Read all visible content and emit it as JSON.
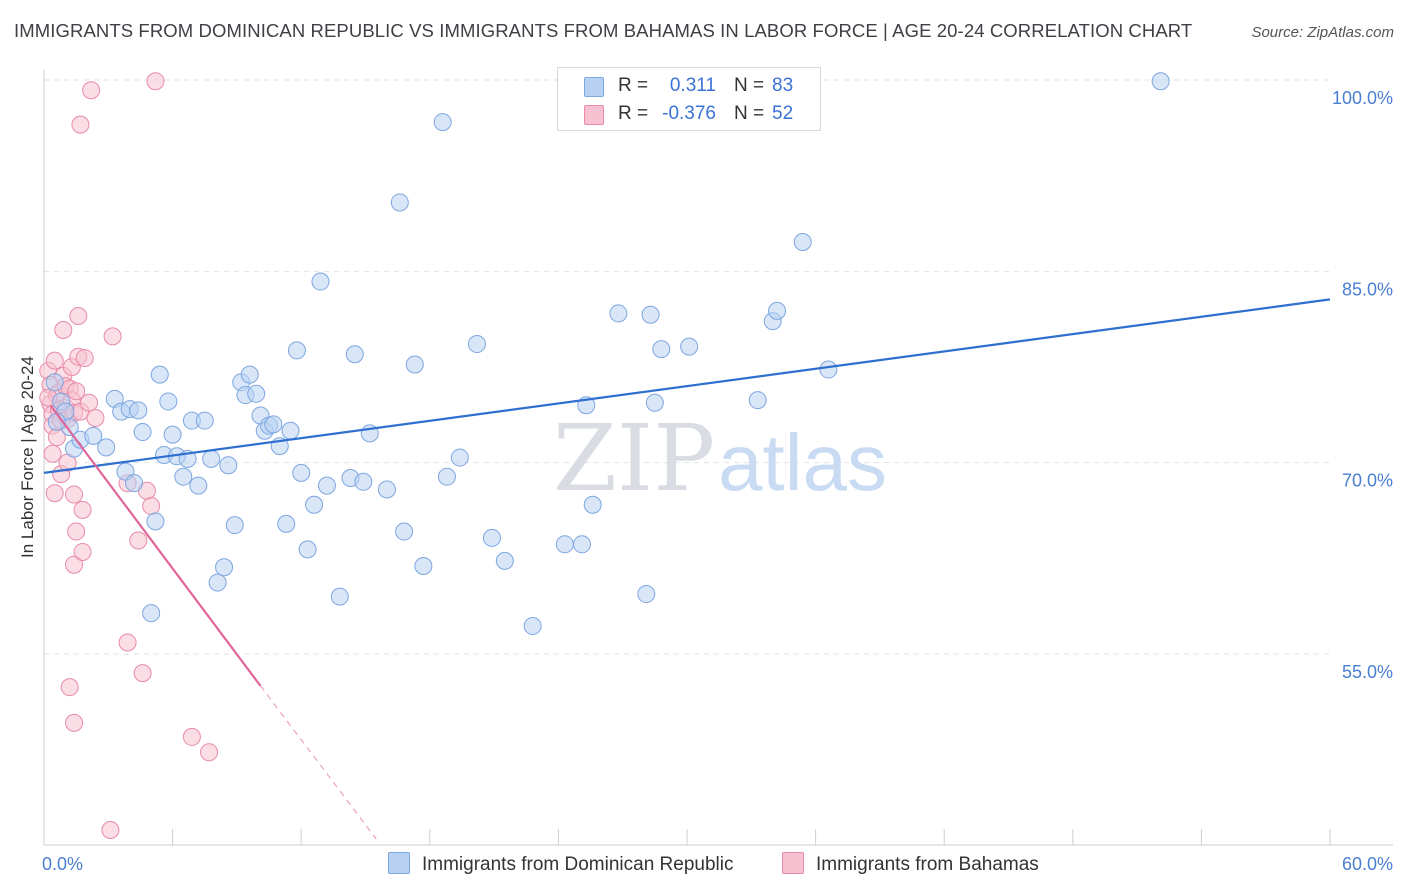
{
  "title": "IMMIGRANTS FROM DOMINICAN REPUBLIC VS IMMIGRANTS FROM BAHAMAS IN LABOR FORCE | AGE 20-24 CORRELATION CHART",
  "source": "Source: ZipAtlas.com",
  "watermark": {
    "zip": "ZIP",
    "atlas": "atlas"
  },
  "colors": {
    "blue_fill": "#b8d1f3",
    "blue_stroke": "#7ea6e0",
    "blue_line": "#2f6fd0",
    "pink_fill": "#f7c1d2",
    "pink_stroke": "#e88ba8",
    "pink_line": "#e0649a",
    "grid": "#e2e2e2",
    "tick_text": "#4a7fd1"
  },
  "legend": {
    "rows": [
      {
        "r_label": "R =",
        "r_value": "0.311",
        "n_label": "N =",
        "n_value": "83"
      },
      {
        "r_label": "R =",
        "r_value": "-0.376",
        "n_label": "N =",
        "n_value": "52"
      }
    ]
  },
  "chart_data": {
    "type": "scatter",
    "title": "IMMIGRANTS FROM DOMINICAN REPUBLIC VS IMMIGRANTS FROM BAHAMAS IN LABOR FORCE | AGE 20-24 CORRELATION CHART",
    "xlabel": "",
    "ylabel": "In Labor Force | Age 20-24",
    "xlim": [
      0,
      60
    ],
    "ylim": [
      40,
      103
    ],
    "x_tick_labels": [
      {
        "value": 0,
        "label": "0.0%"
      },
      {
        "value": 60,
        "label": "60.0%"
      }
    ],
    "y_tick_labels": [
      {
        "value": 100,
        "label": "100.0%"
      },
      {
        "value": 85,
        "label": "85.0%"
      },
      {
        "value": 70,
        "label": "70.0%"
      },
      {
        "value": 55,
        "label": "55.0%"
      }
    ],
    "grid": true,
    "series": [
      {
        "name": "Immigrants from Dominican Republic",
        "color": "#7ea6e0",
        "R": 0.311,
        "N": 83,
        "trend": {
          "x": [
            0,
            60
          ],
          "y": [
            69.2,
            82.8
          ],
          "style": "solid"
        },
        "points": [
          [
            0.5,
            76.3
          ],
          [
            0.8,
            74.8
          ],
          [
            1.0,
            74.0
          ],
          [
            1.2,
            72.8
          ],
          [
            1.4,
            71.1
          ],
          [
            1.7,
            71.8
          ],
          [
            2.3,
            72.1
          ],
          [
            2.9,
            71.2
          ],
          [
            3.3,
            75.0
          ],
          [
            3.6,
            74.0
          ],
          [
            3.8,
            69.3
          ],
          [
            4.0,
            74.2
          ],
          [
            4.2,
            68.4
          ],
          [
            4.4,
            74.1
          ],
          [
            4.6,
            72.4
          ],
          [
            5.0,
            58.2
          ],
          [
            5.2,
            65.4
          ],
          [
            5.4,
            76.9
          ],
          [
            5.6,
            70.6
          ],
          [
            5.8,
            74.8
          ],
          [
            6.0,
            72.2
          ],
          [
            6.2,
            70.5
          ],
          [
            6.5,
            68.9
          ],
          [
            6.7,
            70.3
          ],
          [
            6.9,
            73.3
          ],
          [
            7.2,
            68.2
          ],
          [
            7.5,
            73.3
          ],
          [
            7.8,
            70.3
          ],
          [
            8.1,
            60.6
          ],
          [
            8.4,
            61.8
          ],
          [
            8.6,
            69.8
          ],
          [
            8.9,
            65.1
          ],
          [
            9.2,
            76.3
          ],
          [
            9.4,
            75.3
          ],
          [
            9.6,
            76.9
          ],
          [
            9.9,
            75.4
          ],
          [
            10.1,
            73.7
          ],
          [
            10.3,
            72.5
          ],
          [
            10.5,
            72.9
          ],
          [
            10.7,
            73.0
          ],
          [
            11.0,
            71.3
          ],
          [
            11.3,
            65.2
          ],
          [
            11.5,
            72.5
          ],
          [
            11.8,
            78.8
          ],
          [
            12.0,
            69.2
          ],
          [
            12.3,
            63.2
          ],
          [
            12.6,
            66.7
          ],
          [
            12.9,
            84.2
          ],
          [
            13.2,
            68.2
          ],
          [
            13.8,
            59.5
          ],
          [
            14.3,
            68.8
          ],
          [
            14.5,
            78.5
          ],
          [
            14.9,
            68.5
          ],
          [
            15.2,
            72.3
          ],
          [
            16.0,
            67.9
          ],
          [
            16.6,
            90.4
          ],
          [
            16.8,
            64.6
          ],
          [
            17.3,
            77.7
          ],
          [
            17.7,
            61.9
          ],
          [
            18.6,
            96.7
          ],
          [
            18.8,
            68.9
          ],
          [
            19.4,
            70.4
          ],
          [
            20.2,
            79.3
          ],
          [
            20.9,
            64.1
          ],
          [
            21.5,
            62.3
          ],
          [
            22.8,
            57.2
          ],
          [
            24.3,
            63.6
          ],
          [
            25.1,
            63.6
          ],
          [
            25.3,
            74.5
          ],
          [
            25.6,
            66.7
          ],
          [
            26.8,
            81.7
          ],
          [
            28.1,
            59.7
          ],
          [
            28.3,
            81.6
          ],
          [
            28.5,
            74.7
          ],
          [
            28.8,
            78.9
          ],
          [
            30.1,
            79.1
          ],
          [
            33.3,
            74.9
          ],
          [
            34.0,
            81.1
          ],
          [
            34.2,
            81.9
          ],
          [
            35.4,
            87.3
          ],
          [
            36.6,
            77.3
          ],
          [
            52.1,
            99.9
          ],
          [
            0.6,
            73.2
          ]
        ]
      },
      {
        "name": "Immigrants from Bahamas",
        "color": "#e88ba8",
        "R": -0.376,
        "N": 52,
        "trend": {
          "x": [
            0.3,
            10.1
          ],
          "y": [
            74.5,
            52.5
          ],
          "style": "solid",
          "extension": {
            "x": [
              10.1,
              15.5
            ],
            "y": [
              52.5,
              40.5
            ],
            "style": "dashed"
          }
        },
        "points": [
          [
            0.2,
            77.2
          ],
          [
            0.3,
            76.1
          ],
          [
            0.3,
            74.6
          ],
          [
            0.4,
            73.8
          ],
          [
            0.4,
            72.9
          ],
          [
            0.4,
            70.7
          ],
          [
            0.5,
            67.6
          ],
          [
            0.5,
            78.0
          ],
          [
            0.6,
            75.3
          ],
          [
            0.7,
            75.5
          ],
          [
            0.7,
            74.1
          ],
          [
            0.8,
            73.3
          ],
          [
            0.8,
            69.1
          ],
          [
            0.9,
            80.4
          ],
          [
            0.9,
            76.8
          ],
          [
            1.0,
            76.0
          ],
          [
            1.0,
            74.3
          ],
          [
            1.1,
            73.4
          ],
          [
            1.1,
            70.0
          ],
          [
            1.2,
            75.8
          ],
          [
            1.2,
            52.4
          ],
          [
            1.3,
            77.5
          ],
          [
            1.3,
            74.9
          ],
          [
            1.4,
            73.9
          ],
          [
            1.4,
            67.5
          ],
          [
            1.4,
            62.0
          ],
          [
            1.4,
            49.6
          ],
          [
            1.5,
            64.6
          ],
          [
            1.5,
            75.6
          ],
          [
            1.6,
            78.3
          ],
          [
            1.6,
            81.5
          ],
          [
            1.7,
            96.5
          ],
          [
            1.7,
            74.0
          ],
          [
            1.8,
            66.3
          ],
          [
            1.8,
            63.0
          ],
          [
            1.9,
            78.2
          ],
          [
            2.1,
            74.7
          ],
          [
            2.2,
            99.2
          ],
          [
            2.4,
            73.5
          ],
          [
            3.1,
            41.2
          ],
          [
            3.2,
            79.9
          ],
          [
            3.9,
            68.4
          ],
          [
            3.9,
            55.9
          ],
          [
            4.4,
            63.9
          ],
          [
            4.6,
            53.5
          ],
          [
            4.8,
            67.8
          ],
          [
            5.0,
            66.6
          ],
          [
            5.2,
            99.9
          ],
          [
            6.9,
            48.5
          ],
          [
            7.7,
            47.3
          ],
          [
            0.2,
            75.1
          ],
          [
            0.6,
            72.0
          ]
        ]
      }
    ]
  }
}
